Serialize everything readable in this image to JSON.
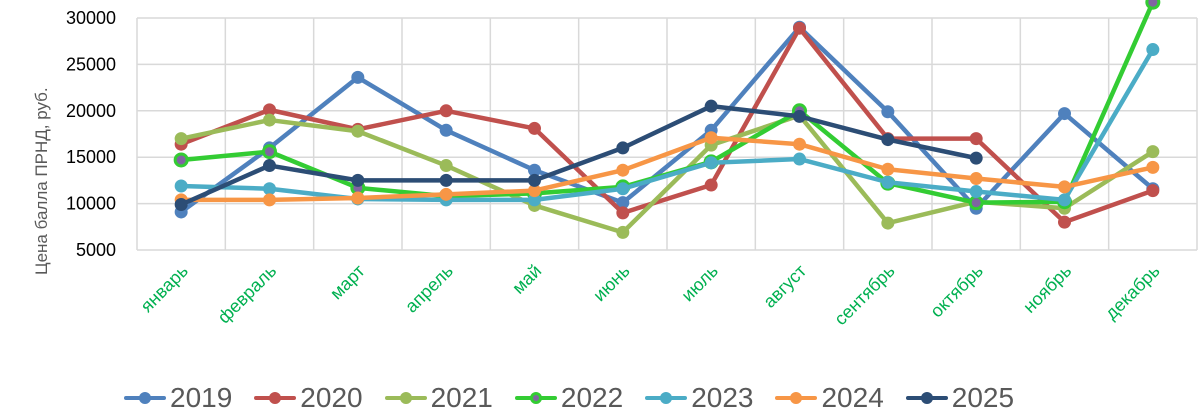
{
  "chart_data": {
    "type": "line",
    "title": "",
    "xlabel": "",
    "ylabel": "Цена балла ПРНД, руб.",
    "ylim": [
      5000,
      30000
    ],
    "yticks": [
      5000,
      10000,
      15000,
      20000,
      25000,
      30000
    ],
    "grid": true,
    "legend_position": "bottom",
    "categories": [
      "январь",
      "февраль",
      "март",
      "апрель",
      "май",
      "июнь",
      "июль",
      "август",
      "сентябрь",
      "октябрь",
      "ноябрь",
      "декабрь"
    ],
    "series": [
      {
        "name": "2019",
        "color": "#4f81bd",
        "marker_fill": "#4f81bd",
        "values": [
          9100,
          16000,
          23600,
          17900,
          13600,
          10100,
          17900,
          29000,
          19900,
          9500,
          19700,
          11600
        ]
      },
      {
        "name": "2020",
        "color": "#c0504d",
        "marker_fill": "#c0504d",
        "values": [
          16400,
          20100,
          18000,
          20000,
          18100,
          9000,
          12000,
          28900,
          17000,
          17000,
          8000,
          11400
        ]
      },
      {
        "name": "2021",
        "color": "#9bbb59",
        "marker_fill": "#9bbb59",
        "values": [
          17000,
          19000,
          17800,
          14100,
          9800,
          6900,
          16300,
          19500,
          7900,
          10200,
          9500,
          15600
        ]
      },
      {
        "name": "2022",
        "color": "#33cc33",
        "marker_fill": "#8064a2",
        "values": [
          14700,
          15600,
          11700,
          10800,
          11100,
          11800,
          14500,
          20000,
          12200,
          10100,
          10200,
          31700
        ]
      },
      {
        "name": "2023",
        "color": "#4bacc6",
        "marker_fill": "#4bacc6",
        "values": [
          11900,
          11600,
          10500,
          10400,
          10400,
          11600,
          14400,
          14800,
          12300,
          11300,
          10400,
          26600
        ]
      },
      {
        "name": "2024",
        "color": "#f79646",
        "marker_fill": "#f79646",
        "values": [
          10400,
          10400,
          10600,
          11000,
          11400,
          13600,
          17100,
          16400,
          13700,
          12700,
          11800,
          13900
        ]
      },
      {
        "name": "2025",
        "color": "#2c4d75",
        "marker_fill": "#2c4d75",
        "values": [
          9900,
          14100,
          12500,
          12500,
          12500,
          16000,
          20500,
          19400,
          16900,
          14900,
          null,
          null
        ]
      }
    ]
  },
  "colors": {
    "grid": "#d9d9d9",
    "x_label": "#00b050",
    "axis_text": "#000000",
    "legend_text": "#595959"
  }
}
